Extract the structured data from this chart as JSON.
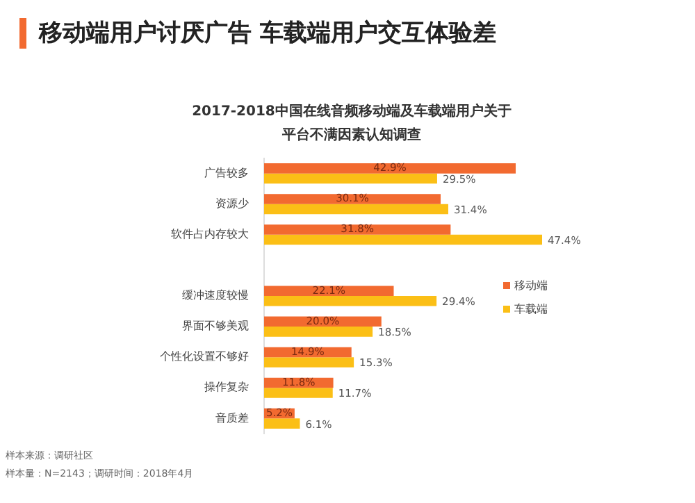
{
  "chart_data": {
    "type": "bar",
    "orientation": "horizontal",
    "title": "移动端用户讨厌广告 车载端用户交互体验差",
    "subtitle": "2017-2018中国在线音频移动端及车载端用户关于平台不满因素认知调查",
    "categories": [
      "广告较多",
      "资源少",
      "软件占内存较大",
      null,
      "缓冲速度较慢",
      "界面不够美观",
      "个性化设置不够好",
      "操作复杂",
      "音质差"
    ],
    "series": [
      {
        "name": "移动端",
        "color": "#f26a30",
        "values": [
          42.9,
          30.1,
          31.8,
          null,
          22.1,
          20.0,
          14.9,
          11.8,
          5.2
        ],
        "value_labels": [
          "42.9%",
          "30.1%",
          "31.8%",
          null,
          "22.1%",
          "20.0%",
          "14.9%",
          "11.8%",
          "5.2%"
        ]
      },
      {
        "name": "车载端",
        "color": "#fbbf16",
        "values": [
          29.5,
          31.4,
          47.4,
          null,
          29.4,
          18.5,
          15.3,
          11.7,
          6.1
        ],
        "value_labels": [
          "29.5%",
          "31.4%",
          "47.4%",
          null,
          "29.4%",
          "18.5%",
          "15.3%",
          "11.7%",
          "6.1%"
        ]
      }
    ],
    "tick_labels": "y",
    "legend": "right",
    "annotations": [
      "样本来源：调研社区",
      "样本量：N=2143；调研时间：2018年4月"
    ]
  }
}
